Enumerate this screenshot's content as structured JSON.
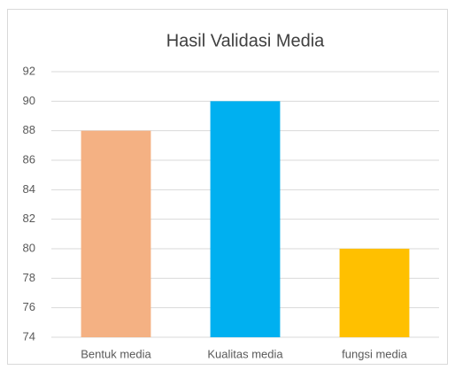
{
  "chart_data": {
    "type": "bar",
    "title": "Hasil Validasi Media",
    "categories": [
      "Bentuk media",
      "Kualitas media",
      "fungsi media"
    ],
    "values": [
      88,
      90,
      80
    ],
    "colors": [
      "#f4b183",
      "#00b0f0",
      "#ffc000"
    ],
    "ylim": [
      74,
      92
    ],
    "yticks": [
      74,
      76,
      78,
      80,
      82,
      84,
      86,
      88,
      90,
      92
    ],
    "grid": true
  }
}
